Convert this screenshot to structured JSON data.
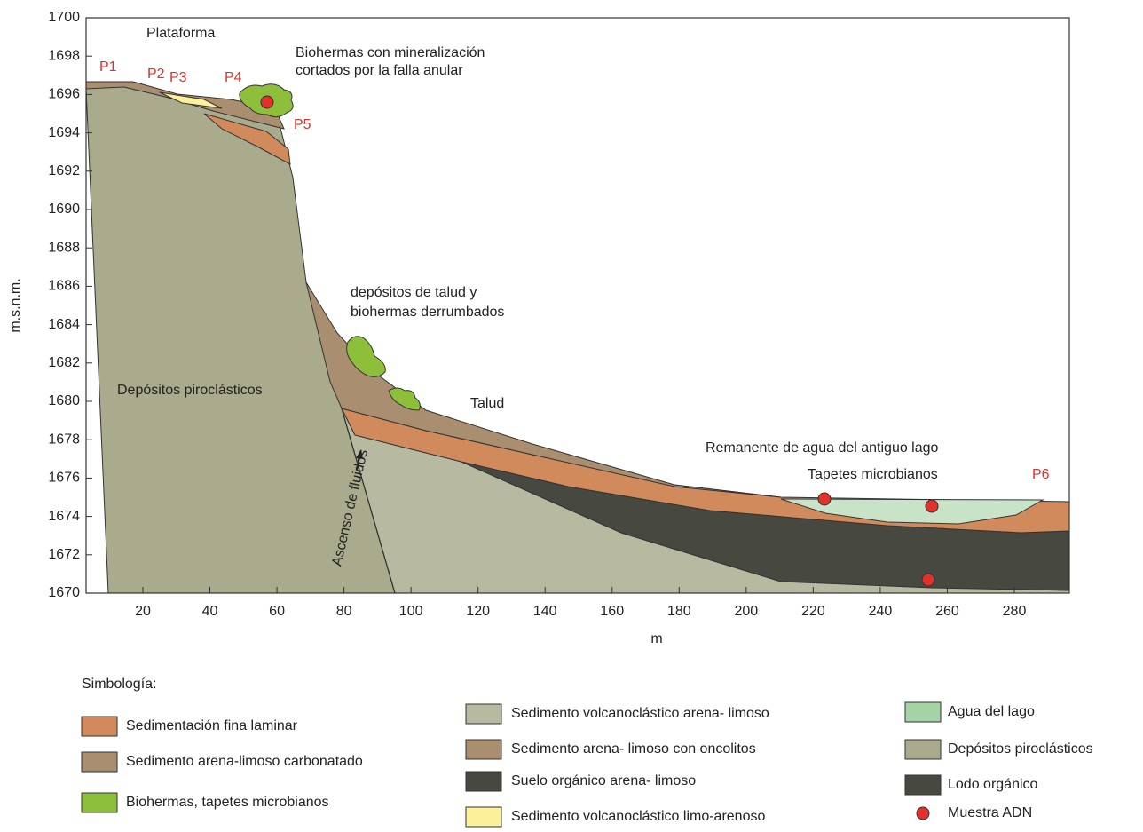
{
  "y_axis": {
    "label": "m.s.n.m.",
    "ticks": [
      1670,
      1672,
      1674,
      1676,
      1678,
      1680,
      1682,
      1684,
      1686,
      1688,
      1690,
      1692,
      1694,
      1696,
      1698,
      1700
    ]
  },
  "x_axis": {
    "label": "m",
    "ticks": [
      20,
      40,
      60,
      80,
      100,
      120,
      140,
      160,
      180,
      200,
      220,
      240,
      260,
      280
    ]
  },
  "annotations": {
    "plataforma": "Plataforma",
    "biohermas_1": "Biohermas con mineralización",
    "biohermas_2": "cortados por la falla anular",
    "talud_dep_1": "depósitos de talud y",
    "talud_dep_2": "biohermas derrumbados",
    "piroclasticos": "Depósitos piroclásticos",
    "talud": "Talud",
    "remanente": "Remanente de agua del antiguo lago",
    "tapetes": "Tapetes microbianos",
    "ascenso": "Ascenso de fluidos"
  },
  "points": [
    "P1",
    "P2",
    "P3",
    "P4",
    "P5",
    "P6"
  ],
  "legend": {
    "title": "Simbología:",
    "items": [
      "Sedimentación fina laminar",
      "Sedimento arena-limoso carbonatado",
      "Biohermas, tapetes microbianos",
      "Sedimento volcanoclástico arena- limoso",
      "Sedimento arena- limoso con oncolitos",
      "Suelo orgánico arena- limoso",
      "Sedimento volcanoclástico limo-arenoso",
      "Agua del lago",
      "Depósitos piroclásticos",
      "Lodo orgánico",
      "Muestra ADN"
    ]
  }
}
